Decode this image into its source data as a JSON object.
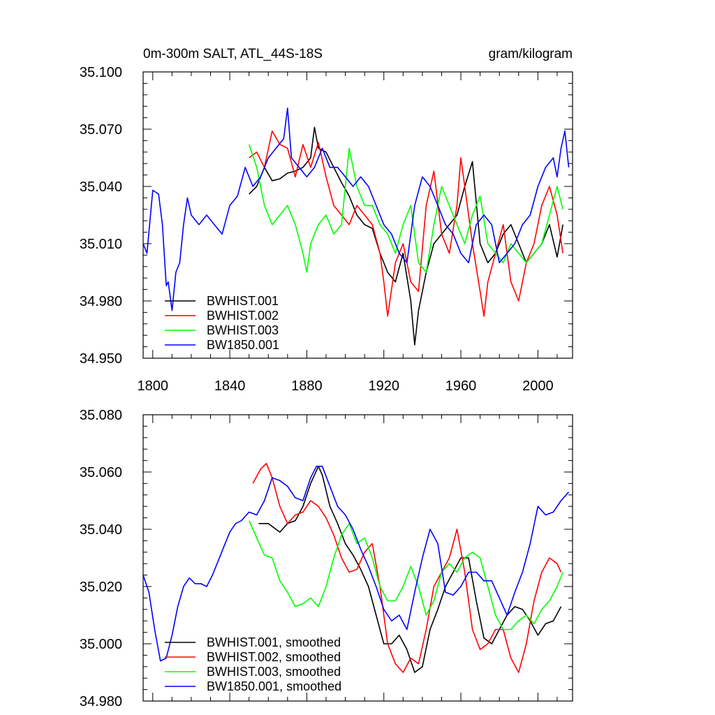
{
  "chart_data": [
    {
      "type": "line",
      "title": "0m-300m SALT, ATL_44S-18S",
      "units": "gram/kilogram",
      "xlim": [
        1795,
        2018
      ],
      "ylim": [
        34.95,
        35.1
      ],
      "yticks": [
        "35.100",
        "35.070",
        "35.040",
        "35.010",
        "34.980",
        "34.950"
      ],
      "xticks": [
        "1800",
        "1840",
        "1880",
        "1920",
        "1960",
        "2000"
      ],
      "legend": "bottom-left",
      "series": [
        {
          "name": "BWHIST.001",
          "color": "#000000",
          "x": [
            1850,
            1854,
            1858,
            1862,
            1866,
            1870,
            1874,
            1878,
            1882,
            1884,
            1886,
            1890,
            1894,
            1898,
            1902,
            1906,
            1910,
            1914,
            1918,
            1922,
            1926,
            1930,
            1934,
            1936,
            1938,
            1942,
            1946,
            1950,
            1954,
            1958,
            1962,
            1966,
            1970,
            1974,
            1978,
            1982,
            1986,
            1990,
            1994,
            1998,
            2002,
            2006,
            2010,
            2013
          ],
          "y": [
            35.036,
            35.04,
            35.05,
            35.043,
            35.044,
            35.047,
            35.048,
            35.05,
            35.055,
            35.071,
            35.06,
            35.058,
            35.05,
            35.042,
            35.035,
            35.025,
            35.02,
            35.018,
            35.005,
            34.995,
            34.99,
            35.005,
            34.98,
            34.957,
            34.975,
            34.995,
            35.01,
            35.015,
            35.02,
            35.025,
            35.04,
            35.053,
            35.01,
            35.0,
            35.005,
            35.015,
            35.02,
            35.01,
            35.0,
            35.005,
            35.01,
            35.02,
            35.003,
            35.02
          ]
        },
        {
          "name": "BWHIST.002",
          "color": "#ff0000",
          "x": [
            1850,
            1854,
            1858,
            1862,
            1866,
            1870,
            1874,
            1878,
            1882,
            1886,
            1890,
            1894,
            1898,
            1902,
            1906,
            1910,
            1914,
            1918,
            1920,
            1922,
            1926,
            1930,
            1934,
            1938,
            1942,
            1946,
            1950,
            1954,
            1958,
            1960,
            1962,
            1966,
            1970,
            1972,
            1974,
            1978,
            1982,
            1986,
            1990,
            1994,
            1998,
            2002,
            2006,
            2010,
            2013
          ],
          "y": [
            35.055,
            35.058,
            35.05,
            35.069,
            35.062,
            35.06,
            35.045,
            35.062,
            35.05,
            35.063,
            35.045,
            35.03,
            35.025,
            35.02,
            35.03,
            35.025,
            35.02,
            35.005,
            34.99,
            34.972,
            35.0,
            35.01,
            34.99,
            34.985,
            35.03,
            35.048,
            35.015,
            35.005,
            35.03,
            35.055,
            35.04,
            35.01,
            34.985,
            34.972,
            34.99,
            35.005,
            35.02,
            34.99,
            34.98,
            35.0,
            35.01,
            35.03,
            35.04,
            35.025,
            35.005
          ]
        },
        {
          "name": "BWHIST.003",
          "color": "#00ff00",
          "x": [
            1850,
            1854,
            1858,
            1862,
            1866,
            1870,
            1874,
            1878,
            1880,
            1882,
            1886,
            1890,
            1894,
            1898,
            1902,
            1906,
            1910,
            1914,
            1918,
            1922,
            1926,
            1930,
            1934,
            1938,
            1942,
            1946,
            1950,
            1954,
            1958,
            1962,
            1966,
            1970,
            1974,
            1978,
            1982,
            1986,
            1990,
            1994,
            1998,
            2002,
            2006,
            2010,
            2013
          ],
          "y": [
            35.062,
            35.05,
            35.03,
            35.02,
            35.025,
            35.03,
            35.02,
            35.005,
            34.995,
            35.01,
            35.02,
            35.025,
            35.015,
            35.02,
            35.06,
            35.04,
            35.03,
            35.03,
            35.02,
            35.015,
            35.005,
            35.02,
            35.03,
            35.0,
            34.995,
            35.02,
            35.04,
            35.03,
            35.02,
            35.01,
            35.025,
            35.035,
            35.01,
            35.005,
            35.0,
            35.01,
            35.005,
            35.0,
            35.005,
            35.01,
            35.025,
            35.04,
            35.028
          ]
        },
        {
          "name": "BW1850.001",
          "color": "#0000ff",
          "x": [
            1795,
            1797,
            1800,
            1803,
            1805,
            1807,
            1808,
            1810,
            1812,
            1814,
            1816,
            1818,
            1820,
            1824,
            1828,
            1832,
            1836,
            1840,
            1844,
            1848,
            1852,
            1856,
            1860,
            1864,
            1868,
            1870,
            1872,
            1876,
            1880,
            1884,
            1888,
            1892,
            1896,
            1900,
            1904,
            1908,
            1912,
            1916,
            1920,
            1924,
            1928,
            1932,
            1936,
            1940,
            1944,
            1948,
            1952,
            1956,
            1960,
            1964,
            1968,
            1972,
            1976,
            1980,
            1984,
            1988,
            1992,
            1996,
            2000,
            2004,
            2008,
            2010,
            2012,
            2014,
            2016
          ],
          "y": [
            35.01,
            35.005,
            35.038,
            35.036,
            35.02,
            34.988,
            34.99,
            34.975,
            34.995,
            35.0,
            35.02,
            35.034,
            35.025,
            35.02,
            35.025,
            35.02,
            35.015,
            35.03,
            35.035,
            35.05,
            35.04,
            35.045,
            35.055,
            35.06,
            35.065,
            35.081,
            35.055,
            35.05,
            35.045,
            35.05,
            35.06,
            35.05,
            35.05,
            35.045,
            35.04,
            35.045,
            35.04,
            35.03,
            35.02,
            35.015,
            35.005,
            35.0,
            35.03,
            35.045,
            35.04,
            35.03,
            35.02,
            35.015,
            35.005,
            35.0,
            35.02,
            35.025,
            35.02,
            35.0,
            35.005,
            35.01,
            35.02,
            35.025,
            35.04,
            35.05,
            35.055,
            35.045,
            35.06,
            35.069,
            35.05
          ]
        }
      ]
    },
    {
      "type": "line",
      "title": "",
      "xlim": [
        1795,
        2018
      ],
      "ylim": [
        34.98,
        35.08
      ],
      "yticks": [
        "35.080",
        "35.060",
        "35.040",
        "35.020",
        "35.000",
        "34.980"
      ],
      "legend": "bottom-left",
      "series": [
        {
          "name": "BWHIST.001, smoothed",
          "color": "#000000",
          "x": [
            1855,
            1860,
            1866,
            1870,
            1874,
            1878,
            1882,
            1886,
            1888,
            1892,
            1896,
            1900,
            1904,
            1908,
            1912,
            1916,
            1920,
            1924,
            1928,
            1932,
            1936,
            1940,
            1944,
            1948,
            1952,
            1956,
            1960,
            1964,
            1968,
            1972,
            1976,
            1980,
            1984,
            1988,
            1992,
            1996,
            2000,
            2004,
            2008,
            2012
          ],
          "y": [
            35.042,
            35.042,
            35.039,
            35.042,
            35.043,
            35.048,
            35.056,
            35.062,
            35.059,
            35.048,
            35.042,
            35.035,
            35.031,
            35.026,
            35.02,
            35.01,
            35.0,
            35.0,
            35.003,
            34.998,
            34.99,
            34.992,
            35.005,
            35.012,
            35.02,
            35.025,
            35.03,
            35.03,
            35.015,
            35.002,
            35.0,
            35.005,
            35.01,
            35.013,
            35.012,
            35.008,
            35.003,
            35.007,
            35.008,
            35.013
          ]
        },
        {
          "name": "BWHIST.002, smoothed",
          "color": "#ff0000",
          "x": [
            1852,
            1856,
            1859,
            1862,
            1866,
            1870,
            1874,
            1878,
            1882,
            1886,
            1890,
            1894,
            1898,
            1902,
            1906,
            1910,
            1914,
            1918,
            1922,
            1926,
            1930,
            1934,
            1938,
            1942,
            1946,
            1950,
            1954,
            1958,
            1962,
            1966,
            1970,
            1974,
            1978,
            1982,
            1986,
            1990,
            1994,
            1998,
            2002,
            2006,
            2010,
            2012
          ],
          "y": [
            35.056,
            35.061,
            35.063,
            35.058,
            35.048,
            35.042,
            35.045,
            35.046,
            35.05,
            35.048,
            35.044,
            35.038,
            35.03,
            35.025,
            35.026,
            35.032,
            35.035,
            35.02,
            35.0,
            34.993,
            34.99,
            34.995,
            34.993,
            35.005,
            35.02,
            35.025,
            35.03,
            35.04,
            35.025,
            35.005,
            34.998,
            35.0,
            35.005,
            35.005,
            34.995,
            34.99,
            35.0,
            35.015,
            35.025,
            35.03,
            35.028,
            35.025
          ]
        },
        {
          "name": "BWHIST.003, smoothed",
          "color": "#00ff00",
          "x": [
            1850,
            1854,
            1858,
            1862,
            1866,
            1870,
            1874,
            1878,
            1882,
            1886,
            1890,
            1894,
            1898,
            1902,
            1906,
            1910,
            1914,
            1918,
            1922,
            1926,
            1930,
            1934,
            1938,
            1942,
            1946,
            1950,
            1954,
            1958,
            1962,
            1966,
            1970,
            1974,
            1978,
            1982,
            1986,
            1990,
            1994,
            1998,
            2002,
            2006,
            2010,
            2013
          ],
          "y": [
            35.043,
            35.037,
            35.031,
            35.03,
            35.022,
            35.018,
            35.013,
            35.014,
            35.016,
            35.013,
            35.02,
            35.03,
            35.038,
            35.042,
            35.035,
            35.037,
            35.03,
            35.02,
            35.015,
            35.015,
            35.02,
            35.027,
            35.02,
            35.01,
            35.015,
            35.025,
            35.028,
            35.025,
            35.03,
            35.032,
            35.03,
            35.02,
            35.01,
            35.005,
            35.005,
            35.008,
            35.01,
            35.007,
            35.012,
            35.015,
            35.02,
            35.025
          ]
        },
        {
          "name": "BW1850.001, smoothed",
          "color": "#0000ff",
          "x": [
            1795,
            1798,
            1801,
            1804,
            1807,
            1810,
            1813,
            1816,
            1819,
            1822,
            1825,
            1828,
            1831,
            1834,
            1837,
            1840,
            1843,
            1846,
            1850,
            1854,
            1858,
            1862,
            1866,
            1870,
            1874,
            1878,
            1882,
            1885,
            1888,
            1892,
            1896,
            1900,
            1904,
            1908,
            1912,
            1916,
            1920,
            1924,
            1928,
            1932,
            1936,
            1940,
            1944,
            1948,
            1952,
            1956,
            1960,
            1964,
            1968,
            1972,
            1976,
            1980,
            1984,
            1988,
            1992,
            1996,
            2000,
            2004,
            2008,
            2012,
            2016
          ],
          "y": [
            35.024,
            35.018,
            35.005,
            34.994,
            34.995,
            35.003,
            35.013,
            35.02,
            35.023,
            35.021,
            35.021,
            35.02,
            35.024,
            35.029,
            35.034,
            35.039,
            35.042,
            35.043,
            35.046,
            35.045,
            35.05,
            35.058,
            35.057,
            35.055,
            35.051,
            35.05,
            35.058,
            35.062,
            35.062,
            35.055,
            35.048,
            35.045,
            35.04,
            35.033,
            35.027,
            35.02,
            35.012,
            35.008,
            35.01,
            35.005,
            35.018,
            35.03,
            35.04,
            35.035,
            35.018,
            35.017,
            35.02,
            35.025,
            35.025,
            35.022,
            35.022,
            35.016,
            35.01,
            35.018,
            35.025,
            35.035,
            35.048,
            35.045,
            35.046,
            35.05,
            35.053
          ]
        }
      ]
    }
  ]
}
